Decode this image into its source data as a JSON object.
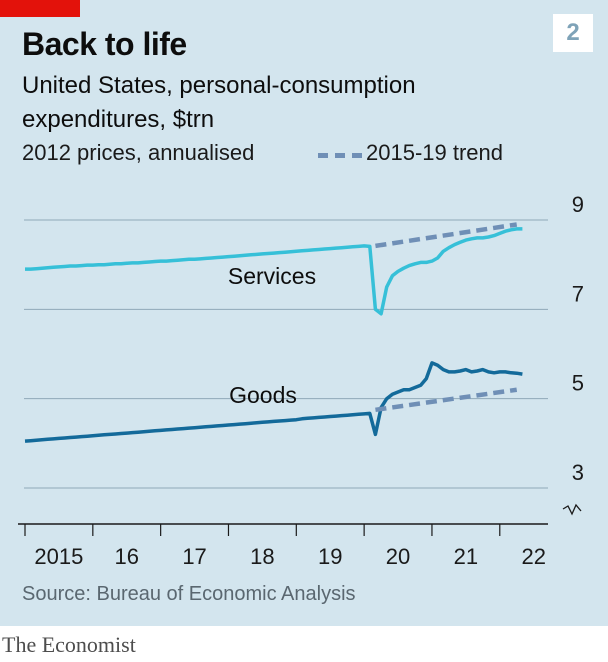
{
  "badge": "2",
  "title": "Back to life",
  "subtitle": "United States, personal-consumption expenditures, $trn",
  "units_note": "2012 prices, annualised",
  "legend": {
    "trend_label": "2015-19 trend"
  },
  "source": "Source: Bureau of Economic Analysis",
  "brand": "The Economist",
  "colors": {
    "background": "#d3e5ee",
    "services": "#36c0d8",
    "goods": "#136a9a",
    "trend": "#6f8fb6",
    "brand_red": "#e3120b"
  },
  "chart_data": {
    "type": "line",
    "title": "Back to life",
    "y_ticks": [
      "3",
      "5",
      "7",
      "9"
    ],
    "x_ticks": [
      "2015",
      "16",
      "17",
      "18",
      "19",
      "20",
      "21",
      "22"
    ],
    "ylim": [
      3,
      9
    ],
    "axis_break": true,
    "grid": true,
    "series": [
      {
        "name": "Services",
        "frequency": "monthly",
        "start": "2015-01",
        "values": [
          7.9,
          7.9,
          7.91,
          7.92,
          7.93,
          7.94,
          7.95,
          7.96,
          7.97,
          7.97,
          7.98,
          7.99,
          7.99,
          8.0,
          8.0,
          8.01,
          8.02,
          8.02,
          8.03,
          8.04,
          8.04,
          8.05,
          8.06,
          8.07,
          8.08,
          8.08,
          8.09,
          8.1,
          8.11,
          8.12,
          8.12,
          8.13,
          8.14,
          8.15,
          8.16,
          8.17,
          8.18,
          8.19,
          8.2,
          8.21,
          8.22,
          8.23,
          8.24,
          8.25,
          8.26,
          8.27,
          8.28,
          8.29,
          8.3,
          8.31,
          8.32,
          8.33,
          8.34,
          8.35,
          8.36,
          8.37,
          8.38,
          8.39,
          8.4,
          8.41,
          8.42,
          8.41,
          7.0,
          6.9,
          7.5,
          7.75,
          7.85,
          7.92,
          7.98,
          8.02,
          8.05,
          8.05,
          8.08,
          8.15,
          8.3,
          8.38,
          8.45,
          8.5,
          8.55,
          8.58,
          8.6,
          8.6,
          8.62,
          8.65,
          8.7,
          8.75,
          8.78,
          8.8,
          8.8
        ]
      },
      {
        "name": "Goods",
        "frequency": "monthly",
        "start": "2015-01",
        "values": [
          4.05,
          4.06,
          4.07,
          4.08,
          4.09,
          4.1,
          4.11,
          4.12,
          4.13,
          4.14,
          4.15,
          4.16,
          4.17,
          4.18,
          4.19,
          4.2,
          4.21,
          4.22,
          4.23,
          4.24,
          4.25,
          4.26,
          4.27,
          4.28,
          4.29,
          4.3,
          4.31,
          4.32,
          4.33,
          4.34,
          4.35,
          4.36,
          4.37,
          4.38,
          4.39,
          4.4,
          4.41,
          4.42,
          4.43,
          4.44,
          4.45,
          4.46,
          4.47,
          4.48,
          4.49,
          4.5,
          4.51,
          4.52,
          4.53,
          4.55,
          4.56,
          4.57,
          4.58,
          4.59,
          4.6,
          4.61,
          4.62,
          4.63,
          4.64,
          4.65,
          4.66,
          4.67,
          4.2,
          4.8,
          5.0,
          5.1,
          5.15,
          5.2,
          5.2,
          5.25,
          5.3,
          5.45,
          5.8,
          5.75,
          5.65,
          5.6,
          5.6,
          5.62,
          5.65,
          5.6,
          5.62,
          5.65,
          5.6,
          5.58,
          5.6,
          5.6,
          5.58,
          5.57,
          5.55
        ]
      },
      {
        "name": "2015-19 trend",
        "role": "services-trend",
        "dashed": true,
        "start": "2020-03",
        "end": "2022-04",
        "values": [
          8.42,
          8.9
        ]
      },
      {
        "name": "2015-19 trend",
        "role": "goods-trend",
        "dashed": true,
        "start": "2020-03",
        "end": "2022-04",
        "values": [
          4.75,
          5.2
        ]
      }
    ],
    "series_labels": [
      "Services",
      "Goods"
    ]
  }
}
